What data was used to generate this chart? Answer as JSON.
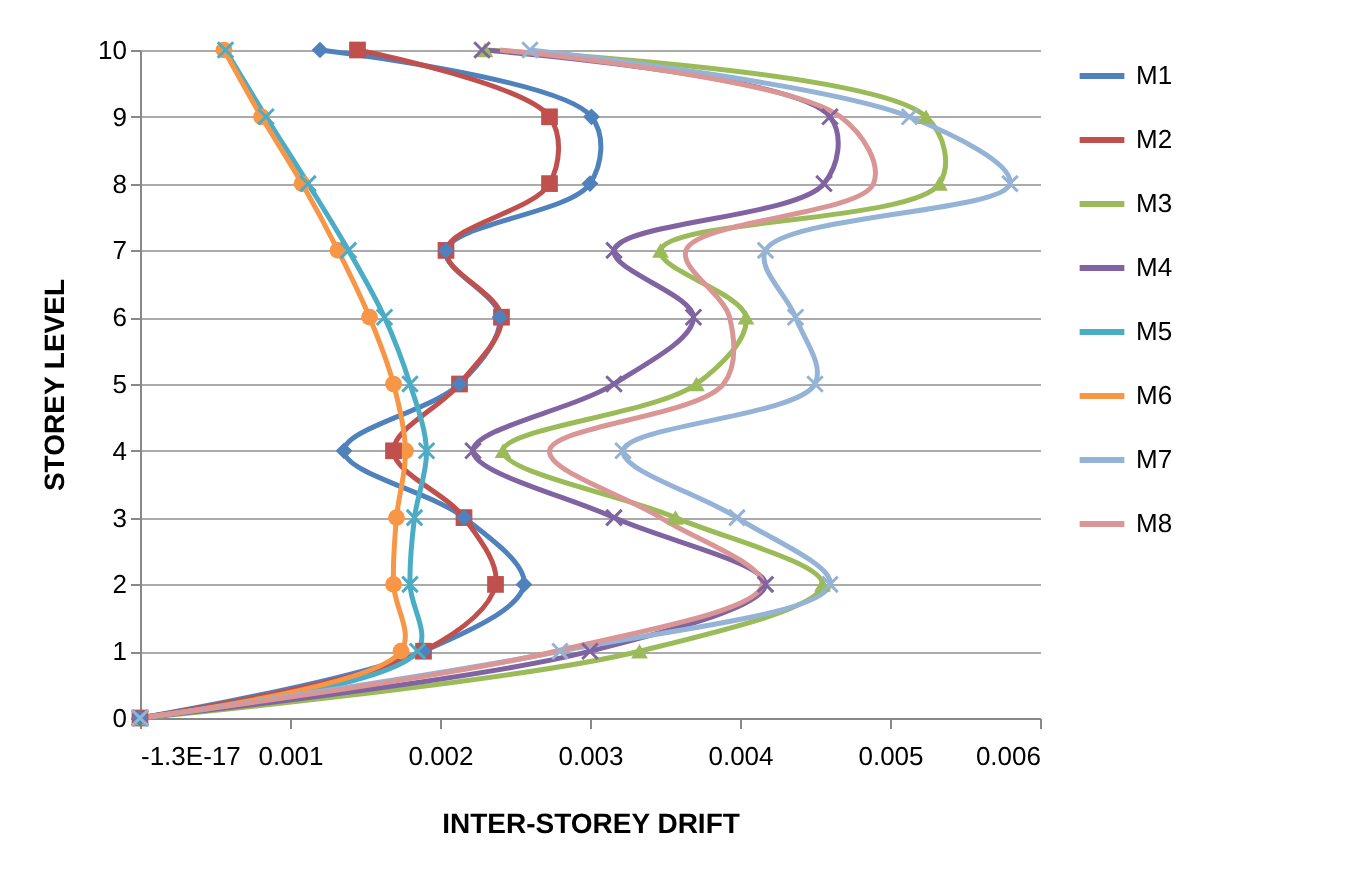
{
  "chart_data": {
    "type": "line",
    "xlabel": "INTER-STOREY DRIFT",
    "ylabel": "STOREY LEVEL",
    "xlim": [
      0,
      0.006
    ],
    "xticks": [
      {
        "value": 0,
        "label": "-1.3E-17"
      },
      0.001,
      0.002,
      0.003,
      0.004,
      0.005,
      0.006
    ],
    "ylim": [
      0,
      10
    ],
    "yticks": [
      0,
      1,
      2,
      3,
      4,
      5,
      6,
      7,
      8,
      9,
      10
    ],
    "grid": "y",
    "legend": "right",
    "series": [
      {
        "name": "M1",
        "color": "#4f81bd",
        "marker": "diamond",
        "x": [
          0,
          0.00189,
          0.00256,
          0.00216,
          0.00136,
          0.00213,
          0.0024,
          0.00204,
          0.003,
          0.00301,
          0.0012
        ],
        "values": [
          0,
          1,
          2,
          3,
          4,
          5,
          6,
          7,
          8,
          9,
          10
        ]
      },
      {
        "name": "M2",
        "color": "#c0504d",
        "marker": "square",
        "x": [
          0,
          0.00189,
          0.00237,
          0.00216,
          0.00169,
          0.00213,
          0.00241,
          0.00204,
          0.00273,
          0.00273,
          0.00145
        ],
        "values": [
          0,
          1,
          2,
          3,
          4,
          5,
          6,
          7,
          8,
          9,
          10
        ]
      },
      {
        "name": "M3",
        "color": "#9bbb59",
        "marker": "triangle",
        "x": [
          0,
          0.00333,
          0.00455,
          0.00357,
          0.00242,
          0.00371,
          0.00404,
          0.00347,
          0.00533,
          0.00524,
          0.0023
        ],
        "values": [
          0,
          1,
          2,
          3,
          4,
          5,
          6,
          7,
          8,
          9,
          10
        ]
      },
      {
        "name": "M4",
        "color": "#8064a2",
        "marker": "cross",
        "x": [
          0,
          0.003,
          0.00417,
          0.00316,
          0.00222,
          0.00316,
          0.00369,
          0.00316,
          0.00456,
          0.0046,
          0.00228
        ],
        "values": [
          0,
          1,
          2,
          3,
          4,
          5,
          6,
          7,
          8,
          9,
          10
        ]
      },
      {
        "name": "M5",
        "color": "#4bacc6",
        "marker": "cross",
        "x": [
          0,
          0.00185,
          0.0018,
          0.00183,
          0.00191,
          0.0018,
          0.00163,
          0.00139,
          0.00112,
          0.00084,
          0.00057
        ],
        "values": [
          0,
          1,
          2,
          3,
          4,
          5,
          6,
          7,
          8,
          9,
          10
        ]
      },
      {
        "name": "M6",
        "color": "#f79646",
        "marker": "circle",
        "x": [
          0,
          0.00174,
          0.00169,
          0.00171,
          0.00177,
          0.00169,
          0.00153,
          0.00132,
          0.00108,
          0.00081,
          0.00056
        ],
        "values": [
          0,
          1,
          2,
          3,
          4,
          5,
          6,
          7,
          8,
          9,
          10
        ]
      },
      {
        "name": "M7",
        "color": "#95b3d7",
        "marker": "cross",
        "x": [
          0,
          0.0028,
          0.0046,
          0.00398,
          0.00322,
          0.0045,
          0.00437,
          0.00417,
          0.0058,
          0.00513,
          0.0026
        ],
        "values": [
          0,
          1,
          2,
          3,
          4,
          5,
          6,
          7,
          8,
          9,
          10
        ]
      },
      {
        "name": "M8",
        "color": "#d99694",
        "marker": "none",
        "x": [
          0,
          0.00277,
          0.00415,
          0.00347,
          0.00273,
          0.00389,
          0.00393,
          0.00364,
          0.00489,
          0.00467,
          0.0024
        ],
        "values": [
          0,
          1,
          2,
          3,
          4,
          5,
          6,
          7,
          8,
          9,
          10
        ]
      }
    ]
  }
}
